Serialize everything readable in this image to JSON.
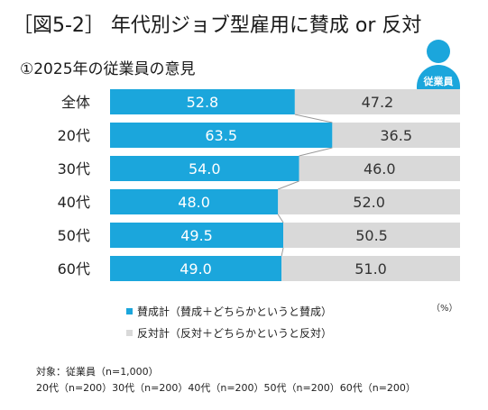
{
  "title": "［図5-2］ 年代別ジョブ型雇用に賛成 or 反対",
  "subtitle": "①2025年の従業員の意見",
  "badge_label": "従業員",
  "unit_label": "（%）",
  "colors": {
    "agree": "#1ba6dc",
    "disagree": "#d9d9d9",
    "connector": "#999999"
  },
  "legend": [
    {
      "label": "賛成計（賛成＋どちらかというと賛成）",
      "color": "#1ba6dc"
    },
    {
      "label": "反対計（反対＋どちらかというと反対）",
      "color": "#d9d9d9"
    }
  ],
  "notes": [
    "対象：従業員（n=1,000）",
    "20代（n=200）30代（n=200）40代（n=200）50代（n=200）60代（n=200）"
  ],
  "chart_data": {
    "type": "bar",
    "orientation": "horizontal",
    "stacked": true,
    "percent_stacked": true,
    "categories": [
      "全体",
      "20代",
      "30代",
      "40代",
      "50代",
      "60代"
    ],
    "series": [
      {
        "name": "賛成計（賛成＋どちらかというと賛成）",
        "values": [
          52.8,
          63.5,
          54.0,
          48.0,
          49.5,
          49.0
        ],
        "labels": [
          "52.8",
          "63.5",
          "54.0",
          "48.0",
          "49.5",
          "49.0"
        ]
      },
      {
        "name": "反対計（反対＋どちらかというと反対）",
        "values": [
          47.2,
          36.5,
          46.0,
          52.0,
          50.5,
          51.0
        ],
        "labels": [
          "47.2",
          "36.5",
          "46.0",
          "52.0",
          "50.5",
          "51.0"
        ]
      }
    ],
    "xlim": [
      0,
      100
    ],
    "grid": false,
    "legend_position": "bottom"
  }
}
